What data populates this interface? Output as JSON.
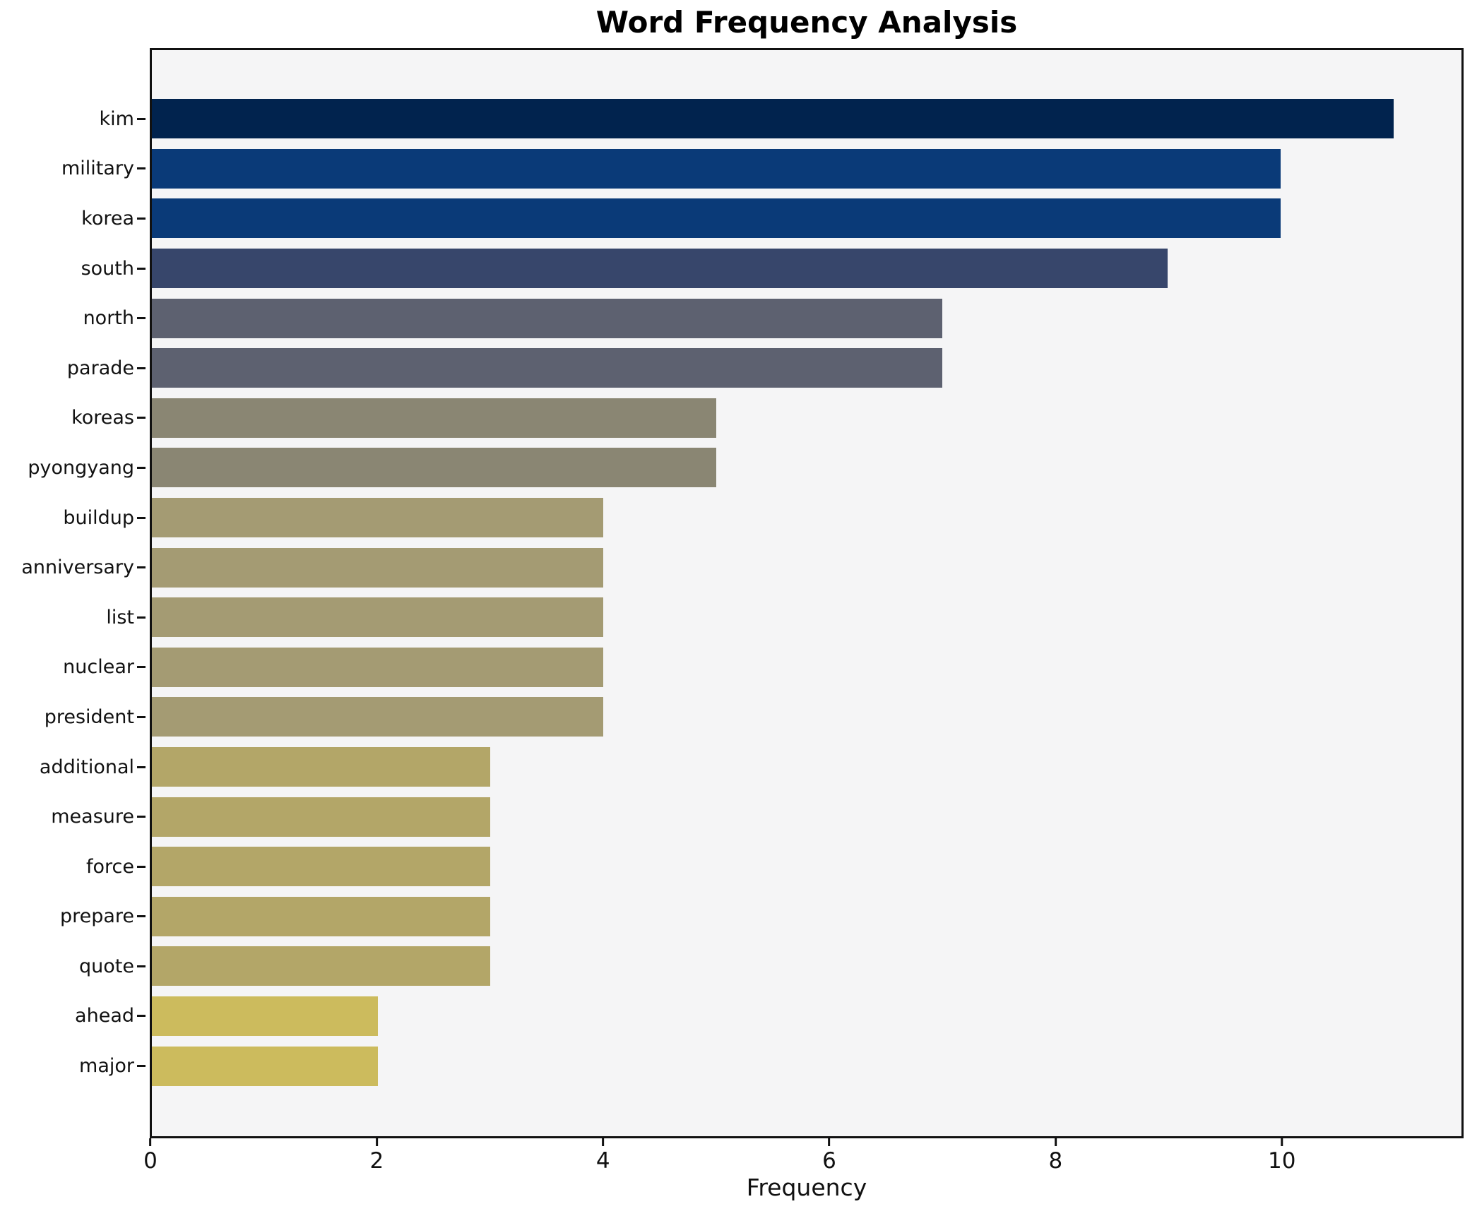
{
  "chart_data": {
    "type": "bar",
    "orientation": "horizontal",
    "title": "Word Frequency Analysis",
    "xlabel": "Frequency",
    "ylabel": "",
    "categories": [
      "kim",
      "military",
      "korea",
      "south",
      "north",
      "parade",
      "koreas",
      "pyongyang",
      "buildup",
      "anniversary",
      "list",
      "nuclear",
      "president",
      "additional",
      "measure",
      "force",
      "prepare",
      "quote",
      "ahead",
      "major"
    ],
    "values": [
      11,
      10,
      10,
      9,
      7,
      7,
      5,
      5,
      4,
      4,
      4,
      4,
      4,
      3,
      3,
      3,
      3,
      3,
      2,
      2
    ],
    "bar_colors": [
      "#01234e",
      "#0a3a78",
      "#0a3a78",
      "#37466b",
      "#5d6170",
      "#5d6170",
      "#8a8673",
      "#8a8673",
      "#a49b73",
      "#a49b73",
      "#a49b73",
      "#a49b73",
      "#a49b73",
      "#b3a668",
      "#b3a668",
      "#b3a668",
      "#b3a668",
      "#b3a668",
      "#ccbb5d",
      "#ccbb5d"
    ],
    "xticks": [
      0,
      2,
      4,
      6,
      8,
      10
    ],
    "xlim": [
      0,
      11.6
    ],
    "grid": false,
    "legend": null,
    "plot_background": "#f5f5f6",
    "figure_background": "#ffffff",
    "spine_color": "#111111"
  }
}
